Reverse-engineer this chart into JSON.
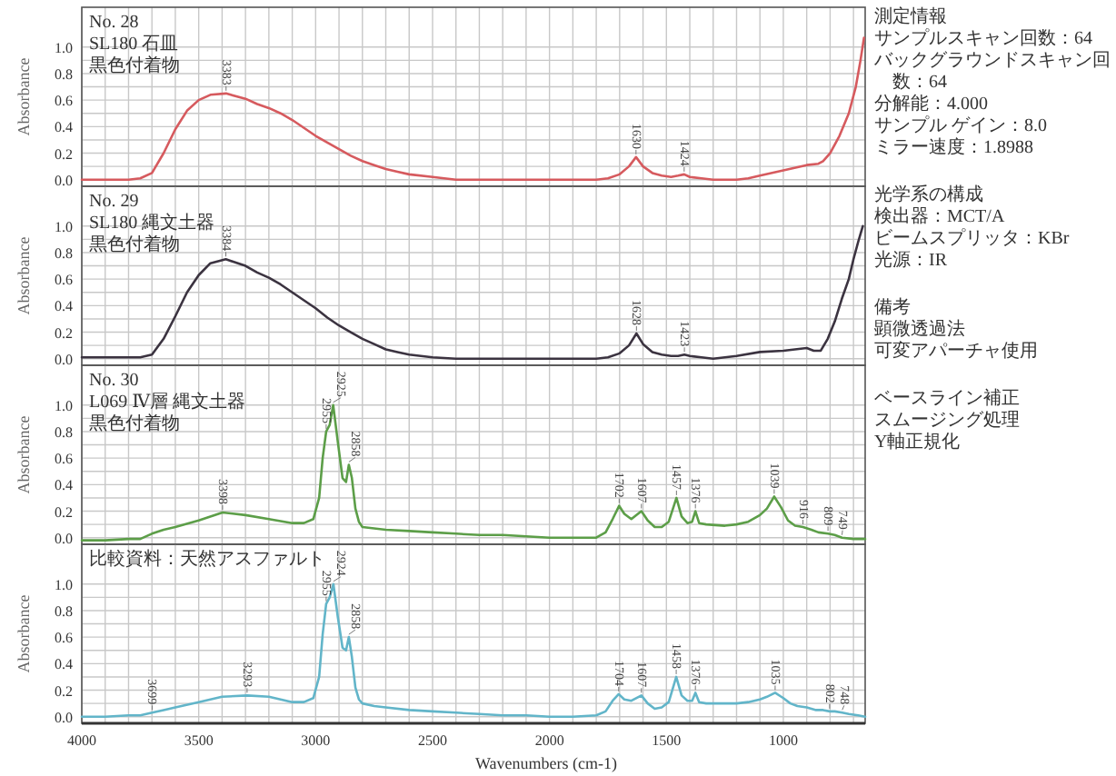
{
  "chart_data": [
    {
      "type": "line",
      "title": "No. 28",
      "subtitle": "SL180 石皿",
      "ylabel": "Absorbance",
      "xlim": [
        4000,
        650
      ],
      "ylim": [
        -0.05,
        1.3
      ],
      "tick_labels": "y",
      "grid": true,
      "xticks": [
        4000,
        {
          "value": 3900,
          "label": null
        },
        {
          "value": 3800,
          "label": null
        },
        {
          "value": 3700,
          "label": null
        },
        {
          "value": 3600,
          "label": null
        },
        3500,
        {
          "value": 3400,
          "label": null
        },
        {
          "value": 3300,
          "label": null
        },
        {
          "value": 3200,
          "label": null
        },
        {
          "value": 3100,
          "label": null
        },
        3000,
        {
          "value": 2900,
          "label": null
        },
        {
          "value": 2800,
          "label": null
        },
        {
          "value": 2700,
          "label": null
        },
        {
          "value": 2600,
          "label": null
        },
        2500,
        {
          "value": 2400,
          "label": null
        },
        {
          "value": 2300,
          "label": null
        },
        {
          "value": 2200,
          "label": null
        },
        {
          "value": 2100,
          "label": null
        },
        2000,
        {
          "value": 1900,
          "label": null
        },
        {
          "value": 1800,
          "label": null
        },
        {
          "value": 1700,
          "label": null
        },
        {
          "value": 1600,
          "label": null
        },
        1500,
        {
          "value": 1400,
          "label": null
        },
        {
          "value": 1300,
          "label": null
        },
        {
          "value": 1200,
          "label": null
        },
        {
          "value": 1100,
          "label": null
        },
        1000,
        {
          "value": 900,
          "label": null
        },
        {
          "value": 800,
          "label": null
        },
        {
          "value": 700,
          "label": null
        }
      ],
      "yticks": [
        {
          "value": 0,
          "label": "0.0"
        },
        {
          "value": 0.1,
          "label": null
        },
        0.2,
        {
          "value": 0.3,
          "label": null
        },
        0.4,
        {
          "value": 0.5,
          "label": null
        },
        0.6,
        {
          "value": 0.7,
          "label": null
        },
        0.8,
        {
          "value": 0.9,
          "label": null
        },
        {
          "value": 1,
          "label": "1.0"
        }
      ],
      "series": [
        {
          "color": "#d65a5e",
          "x": [
            4000,
            3900,
            3800,
            3750,
            3700,
            3650,
            3600,
            3550,
            3500,
            3450,
            3383,
            3300,
            3250,
            3200,
            3150,
            3100,
            3050,
            3000,
            2950,
            2900,
            2850,
            2800,
            2750,
            2700,
            2650,
            2600,
            2500,
            2400,
            2200,
            2000,
            1800,
            1750,
            1700,
            1660,
            1630,
            1600,
            1560,
            1520,
            1480,
            1450,
            1424,
            1400,
            1350,
            1300,
            1250,
            1200,
            1150,
            1100,
            1000,
            900,
            850,
            830,
            800,
            760,
            720,
            690,
            670,
            655
          ],
          "values": [
            0.0,
            0.0,
            0.0,
            0.01,
            0.05,
            0.2,
            0.38,
            0.52,
            0.6,
            0.64,
            0.65,
            0.61,
            0.57,
            0.54,
            0.5,
            0.45,
            0.39,
            0.33,
            0.28,
            0.23,
            0.18,
            0.14,
            0.11,
            0.08,
            0.06,
            0.04,
            0.02,
            0.0,
            0.0,
            0.0,
            0.0,
            0.01,
            0.04,
            0.1,
            0.17,
            0.1,
            0.05,
            0.03,
            0.02,
            0.03,
            0.04,
            0.02,
            0.01,
            0.0,
            0.0,
            0.0,
            0.01,
            0.03,
            0.07,
            0.11,
            0.12,
            0.14,
            0.2,
            0.33,
            0.5,
            0.7,
            0.9,
            1.07
          ]
        }
      ],
      "annotations": [
        "黒色付着物",
        {
          "text": "3383",
          "x": 3383,
          "y": 0.65
        },
        {
          "text": "1630",
          "x": 1630,
          "y": 0.17
        },
        {
          "text": "1424",
          "x": 1424,
          "y": 0.04
        },
        "測定情報",
        "サンプルスキャン回数：64",
        "バックグラウンドスキャン回数：64",
        "分解能：4.000",
        "サンプル ゲイン：8.0",
        "ミラー速度：1.8988",
        "光学系の構成",
        "検出器：MCT/A",
        "ビームスプリッタ：KBr",
        "光源：IR",
        "備考",
        "顕微透過法",
        "可変アパーチャ使用",
        "ベースライン補正",
        "スムージング処理",
        "Y軸正規化"
      ]
    },
    {
      "type": "line",
      "title": "No. 29",
      "subtitle": "SL180 縄文土器",
      "ylabel": "Absorbance",
      "xlim": [
        4000,
        650
      ],
      "ylim": [
        -0.05,
        1.3
      ],
      "tick_labels": "y",
      "grid": true,
      "xticks": [
        4000,
        {
          "value": 3900,
          "label": null
        },
        {
          "value": 3800,
          "label": null
        },
        {
          "value": 3700,
          "label": null
        },
        {
          "value": 3600,
          "label": null
        },
        3500,
        {
          "value": 3400,
          "label": null
        },
        {
          "value": 3300,
          "label": null
        },
        {
          "value": 3200,
          "label": null
        },
        {
          "value": 3100,
          "label": null
        },
        3000,
        {
          "value": 2900,
          "label": null
        },
        {
          "value": 2800,
          "label": null
        },
        {
          "value": 2700,
          "label": null
        },
        {
          "value": 2600,
          "label": null
        },
        2500,
        {
          "value": 2400,
          "label": null
        },
        {
          "value": 2300,
          "label": null
        },
        {
          "value": 2200,
          "label": null
        },
        {
          "value": 2100,
          "label": null
        },
        2000,
        {
          "value": 1900,
          "label": null
        },
        {
          "value": 1800,
          "label": null
        },
        {
          "value": 1700,
          "label": null
        },
        {
          "value": 1600,
          "label": null
        },
        1500,
        {
          "value": 1400,
          "label": null
        },
        {
          "value": 1300,
          "label": null
        },
        {
          "value": 1200,
          "label": null
        },
        {
          "value": 1100,
          "label": null
        },
        1000,
        {
          "value": 900,
          "label": null
        },
        {
          "value": 800,
          "label": null
        },
        {
          "value": 700,
          "label": null
        }
      ],
      "yticks": [
        {
          "value": 0,
          "label": "0.0"
        },
        {
          "value": 0.1,
          "label": null
        },
        0.2,
        {
          "value": 0.3,
          "label": null
        },
        0.4,
        {
          "value": 0.5,
          "label": null
        },
        0.6,
        {
          "value": 0.7,
          "label": null
        },
        0.8,
        {
          "value": 0.9,
          "label": null
        },
        {
          "value": 1,
          "label": "1.0"
        }
      ],
      "series": [
        {
          "color": "#3b3340",
          "x": [
            4000,
            3900,
            3800,
            3750,
            3700,
            3650,
            3600,
            3550,
            3500,
            3450,
            3384,
            3300,
            3250,
            3200,
            3150,
            3100,
            3050,
            3000,
            2950,
            2900,
            2850,
            2800,
            2750,
            2700,
            2650,
            2600,
            2500,
            2400,
            2200,
            2000,
            1800,
            1750,
            1700,
            1660,
            1628,
            1600,
            1560,
            1520,
            1480,
            1450,
            1423,
            1400,
            1350,
            1300,
            1200,
            1100,
            1000,
            950,
            900,
            870,
            840,
            810,
            780,
            750,
            720,
            700,
            680,
            660
          ],
          "values": [
            0.01,
            0.01,
            0.01,
            0.01,
            0.03,
            0.15,
            0.32,
            0.5,
            0.63,
            0.72,
            0.75,
            0.7,
            0.65,
            0.61,
            0.56,
            0.5,
            0.44,
            0.38,
            0.31,
            0.25,
            0.2,
            0.15,
            0.11,
            0.07,
            0.05,
            0.03,
            0.01,
            0.0,
            0.0,
            0.0,
            0.0,
            0.01,
            0.04,
            0.1,
            0.19,
            0.11,
            0.05,
            0.03,
            0.02,
            0.02,
            0.03,
            0.02,
            0.01,
            0.0,
            0.02,
            0.05,
            0.06,
            0.07,
            0.08,
            0.06,
            0.06,
            0.15,
            0.28,
            0.45,
            0.6,
            0.75,
            0.88,
            1.0
          ]
        }
      ],
      "annotations": [
        "黒色付着物",
        {
          "text": "3384",
          "x": 3384,
          "y": 0.75
        },
        {
          "text": "1628",
          "x": 1628,
          "y": 0.19
        },
        {
          "text": "1423",
          "x": 1423,
          "y": 0.03
        }
      ]
    },
    {
      "type": "line",
      "title": "No. 30",
      "subtitle": "L069 Ⅳ層 縄文土器",
      "ylabel": "Absorbance",
      "xlim": [
        4000,
        650
      ],
      "ylim": [
        -0.05,
        1.3
      ],
      "tick_labels": "y",
      "grid": true,
      "xticks": [
        4000,
        {
          "value": 3900,
          "label": null
        },
        {
          "value": 3800,
          "label": null
        },
        {
          "value": 3700,
          "label": null
        },
        {
          "value": 3600,
          "label": null
        },
        3500,
        {
          "value": 3400,
          "label": null
        },
        {
          "value": 3300,
          "label": null
        },
        {
          "value": 3200,
          "label": null
        },
        {
          "value": 3100,
          "label": null
        },
        3000,
        {
          "value": 2900,
          "label": null
        },
        {
          "value": 2800,
          "label": null
        },
        {
          "value": 2700,
          "label": null
        },
        {
          "value": 2600,
          "label": null
        },
        2500,
        {
          "value": 2400,
          "label": null
        },
        {
          "value": 2300,
          "label": null
        },
        {
          "value": 2200,
          "label": null
        },
        {
          "value": 2100,
          "label": null
        },
        2000,
        {
          "value": 1900,
          "label": null
        },
        {
          "value": 1800,
          "label": null
        },
        {
          "value": 1700,
          "label": null
        },
        {
          "value": 1600,
          "label": null
        },
        1500,
        {
          "value": 1400,
          "label": null
        },
        {
          "value": 1300,
          "label": null
        },
        {
          "value": 1200,
          "label": null
        },
        {
          "value": 1100,
          "label": null
        },
        1000,
        {
          "value": 900,
          "label": null
        },
        {
          "value": 800,
          "label": null
        },
        {
          "value": 700,
          "label": null
        }
      ],
      "yticks": [
        {
          "value": 0,
          "label": "0.0"
        },
        {
          "value": 0.1,
          "label": null
        },
        0.2,
        {
          "value": 0.3,
          "label": null
        },
        0.4,
        {
          "value": 0.5,
          "label": null
        },
        0.6,
        {
          "value": 0.7,
          "label": null
        },
        0.8,
        {
          "value": 0.9,
          "label": null
        },
        {
          "value": 1,
          "label": "1.0"
        }
      ],
      "series": [
        {
          "color": "#5c9e48",
          "x": [
            4000,
            3900,
            3800,
            3750,
            3700,
            3650,
            3600,
            3500,
            3398,
            3300,
            3200,
            3100,
            3050,
            3010,
            2985,
            2970,
            2955,
            2940,
            2925,
            2905,
            2885,
            2870,
            2858,
            2845,
            2830,
            2815,
            2800,
            2750,
            2700,
            2600,
            2500,
            2400,
            2300,
            2200,
            2100,
            2000,
            1900,
            1800,
            1760,
            1730,
            1702,
            1680,
            1650,
            1607,
            1580,
            1550,
            1520,
            1490,
            1457,
            1435,
            1410,
            1390,
            1376,
            1360,
            1330,
            1250,
            1200,
            1150,
            1100,
            1070,
            1039,
            1010,
            980,
            950,
            916,
            880,
            850,
            809,
            780,
            749,
            700,
            650
          ],
          "values": [
            -0.02,
            -0.02,
            -0.01,
            -0.01,
            0.03,
            0.06,
            0.08,
            0.13,
            0.19,
            0.17,
            0.14,
            0.11,
            0.11,
            0.14,
            0.3,
            0.6,
            0.8,
            0.85,
            1.0,
            0.72,
            0.45,
            0.42,
            0.55,
            0.45,
            0.22,
            0.12,
            0.08,
            0.07,
            0.06,
            0.05,
            0.04,
            0.03,
            0.02,
            0.02,
            0.01,
            0.0,
            0.0,
            0.0,
            0.04,
            0.14,
            0.24,
            0.18,
            0.14,
            0.2,
            0.13,
            0.08,
            0.08,
            0.12,
            0.3,
            0.16,
            0.11,
            0.12,
            0.2,
            0.11,
            0.1,
            0.09,
            0.1,
            0.12,
            0.17,
            0.22,
            0.31,
            0.23,
            0.13,
            0.09,
            0.08,
            0.06,
            0.04,
            0.03,
            0.02,
            0.0,
            -0.01,
            -0.01
          ]
        }
      ],
      "annotations": [
        "黒色付着物",
        {
          "text": "3398",
          "x": 3398,
          "y": 0.19
        },
        {
          "text": "2955",
          "x": 2955,
          "y": 0.8
        },
        {
          "text": "2925",
          "x": 2925,
          "y": 1.0
        },
        {
          "text": "2858",
          "x": 2858,
          "y": 0.55
        },
        {
          "text": "1702",
          "x": 1702,
          "y": 0.24
        },
        {
          "text": "1607",
          "x": 1607,
          "y": 0.2
        },
        {
          "text": "1457",
          "x": 1457,
          "y": 0.3
        },
        {
          "text": "1376",
          "x": 1376,
          "y": 0.2
        },
        {
          "text": "1039",
          "x": 1039,
          "y": 0.31
        },
        {
          "text": "916",
          "x": 916,
          "y": 0.08
        },
        {
          "text": "809",
          "x": 809,
          "y": 0.03
        },
        {
          "text": "749",
          "x": 749,
          "y": 0.0
        }
      ]
    },
    {
      "type": "line",
      "title": "比較資料：天然アスファルト",
      "ylabel": "Absorbance",
      "xlabel": "Wavenumbers (cm-1)",
      "xlim": [
        4000,
        650
      ],
      "ylim": [
        -0.05,
        1.3
      ],
      "grid": true,
      "xticks": [
        4000,
        {
          "value": 3900,
          "label": null
        },
        {
          "value": 3800,
          "label": null
        },
        {
          "value": 3700,
          "label": null
        },
        {
          "value": 3600,
          "label": null
        },
        3500,
        {
          "value": 3400,
          "label": null
        },
        {
          "value": 3300,
          "label": null
        },
        {
          "value": 3200,
          "label": null
        },
        {
          "value": 3100,
          "label": null
        },
        3000,
        {
          "value": 2900,
          "label": null
        },
        {
          "value": 2800,
          "label": null
        },
        {
          "value": 2700,
          "label": null
        },
        {
          "value": 2600,
          "label": null
        },
        2500,
        {
          "value": 2400,
          "label": null
        },
        {
          "value": 2300,
          "label": null
        },
        {
          "value": 2200,
          "label": null
        },
        {
          "value": 2100,
          "label": null
        },
        2000,
        {
          "value": 1900,
          "label": null
        },
        {
          "value": 1800,
          "label": null
        },
        {
          "value": 1700,
          "label": null
        },
        {
          "value": 1600,
          "label": null
        },
        1500,
        {
          "value": 1400,
          "label": null
        },
        {
          "value": 1300,
          "label": null
        },
        {
          "value": 1200,
          "label": null
        },
        {
          "value": 1100,
          "label": null
        },
        1000,
        {
          "value": 900,
          "label": null
        },
        {
          "value": 800,
          "label": null
        },
        {
          "value": 700,
          "label": null
        }
      ],
      "yticks": [
        {
          "value": 0,
          "label": "0.0"
        },
        {
          "value": 0.1,
          "label": null
        },
        0.2,
        {
          "value": 0.3,
          "label": null
        },
        0.4,
        {
          "value": 0.5,
          "label": null
        },
        0.6,
        {
          "value": 0.7,
          "label": null
        },
        0.8,
        {
          "value": 0.9,
          "label": null
        },
        {
          "value": 1,
          "label": "1.0"
        }
      ],
      "series": [
        {
          "color": "#62b5c9",
          "x": [
            4000,
            3900,
            3800,
            3750,
            3699,
            3650,
            3600,
            3500,
            3400,
            3293,
            3200,
            3100,
            3050,
            3010,
            2985,
            2970,
            2955,
            2940,
            2924,
            2905,
            2885,
            2870,
            2858,
            2845,
            2830,
            2815,
            2800,
            2750,
            2700,
            2600,
            2500,
            2400,
            2300,
            2200,
            2100,
            2000,
            1900,
            1800,
            1760,
            1730,
            1704,
            1680,
            1650,
            1607,
            1580,
            1550,
            1520,
            1490,
            1458,
            1435,
            1410,
            1390,
            1376,
            1360,
            1330,
            1250,
            1200,
            1150,
            1100,
            1070,
            1035,
            1000,
            970,
            940,
            900,
            860,
            830,
            802,
            780,
            748,
            720,
            680,
            650
          ],
          "values": [
            0.0,
            0.0,
            0.01,
            0.01,
            0.03,
            0.05,
            0.07,
            0.11,
            0.15,
            0.16,
            0.15,
            0.11,
            0.11,
            0.14,
            0.3,
            0.62,
            0.85,
            0.9,
            1.0,
            0.75,
            0.52,
            0.5,
            0.6,
            0.45,
            0.22,
            0.13,
            0.1,
            0.08,
            0.07,
            0.05,
            0.04,
            0.03,
            0.02,
            0.01,
            0.01,
            0.0,
            0.0,
            0.01,
            0.04,
            0.12,
            0.17,
            0.13,
            0.12,
            0.16,
            0.1,
            0.06,
            0.07,
            0.11,
            0.3,
            0.16,
            0.12,
            0.12,
            0.18,
            0.11,
            0.1,
            0.1,
            0.1,
            0.11,
            0.13,
            0.15,
            0.18,
            0.14,
            0.1,
            0.08,
            0.07,
            0.05,
            0.05,
            0.04,
            0.04,
            0.03,
            0.02,
            0.01,
            0.0
          ]
        }
      ],
      "annotations": [
        {
          "text": "3699",
          "x": 3699,
          "y": 0.03
        },
        {
          "text": "3293",
          "x": 3293,
          "y": 0.16
        },
        {
          "text": "2955",
          "x": 2955,
          "y": 0.85
        },
        {
          "text": "2924",
          "x": 2924,
          "y": 1.0
        },
        {
          "text": "2858",
          "x": 2858,
          "y": 0.6
        },
        {
          "text": "1704",
          "x": 1704,
          "y": 0.17
        },
        {
          "text": "1607",
          "x": 1607,
          "y": 0.16
        },
        {
          "text": "1458",
          "x": 1458,
          "y": 0.3
        },
        {
          "text": "1376",
          "x": 1376,
          "y": 0.18
        },
        {
          "text": "1035",
          "x": 1035,
          "y": 0.18
        },
        {
          "text": "802",
          "x": 802,
          "y": 0.04
        },
        {
          "text": "748",
          "x": 748,
          "y": 0.03
        }
      ]
    }
  ]
}
